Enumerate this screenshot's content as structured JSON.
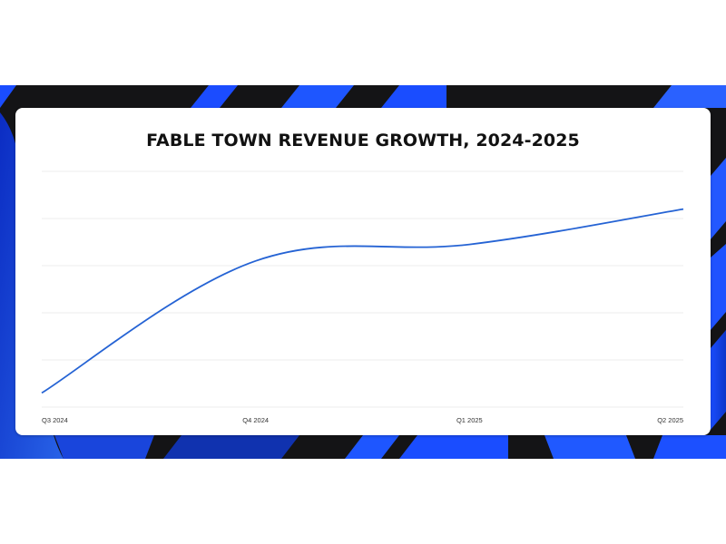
{
  "theme": {
    "backdrop": "#141416",
    "accent_blue": "#1f5bff",
    "line_color": "#2563d4",
    "grid_color": "#ececec",
    "card_bg": "#ffffff"
  },
  "chart_data": {
    "type": "line",
    "title": "FABLE TOWN REVENUE GROWTH, 2024-2025",
    "xlabel": "",
    "ylabel": "",
    "categories": [
      "Q3 2024",
      "Q4 2024",
      "Q1 2025",
      "Q2 2025"
    ],
    "series": [
      {
        "values": [
          0.3,
          3.1,
          3.45,
          4.2
        ]
      }
    ],
    "ylim": [
      0,
      5
    ],
    "grid": true,
    "legend": "none",
    "y_tick_labels_shown": false
  }
}
